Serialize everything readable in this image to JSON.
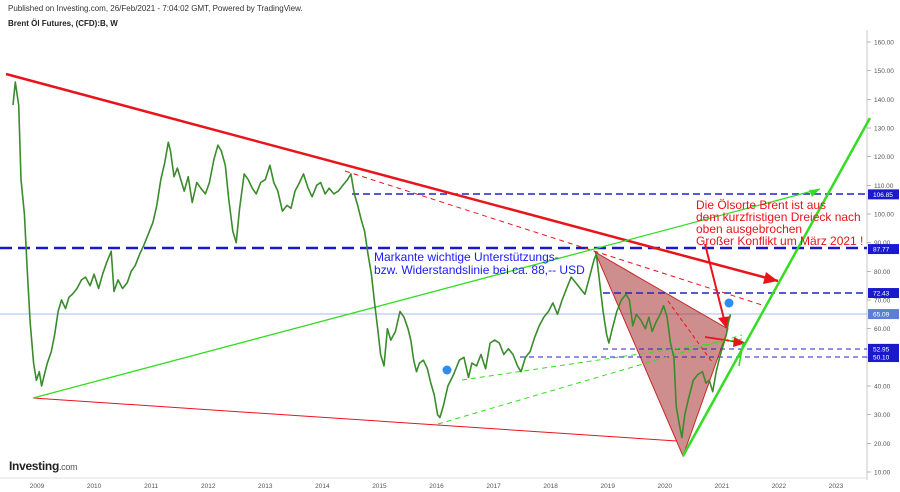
{
  "header": {
    "published": "Published on Investing.com, 26/Feb/2021 - 7:04:02 GMT, Powered by TradingView.",
    "title": "Brent Öl Futures, (CFD):B, W"
  },
  "logo": {
    "brand": "Investing",
    "suffix": ".com"
  },
  "annotations": {
    "red_note": "Die Ölsorte Brent ist aus\ndem kurzfristigen Dreieck nach\noben ausgebrochen\nGroßer Konflikt um März 2021 !",
    "blue_note": "Markante wichtige Unterstützungs-\nbzw. Widerstandslinie bei ca. 88,-- USD"
  },
  "chart_data": {
    "type": "line",
    "title": "Brent Öl Futures, (CFD):B, W",
    "xlabel": "",
    "ylabel": "",
    "x_ticks": [
      "2009",
      "2010",
      "2011",
      "2012",
      "2013",
      "2014",
      "2015",
      "2016",
      "2017",
      "2018",
      "2019",
      "2020",
      "2021",
      "2022",
      "2023"
    ],
    "y_ticks": [
      "10.00",
      "20.00",
      "30.00",
      "40.00",
      "50.00",
      "60.00",
      "70.00",
      "80.00",
      "90.00",
      "100.00",
      "110.00",
      "120.00",
      "130.00",
      "140.00",
      "150.00",
      "160.00"
    ],
    "ylim": [
      10,
      162
    ],
    "xlim": [
      2008.55,
      2023.6
    ],
    "grid": false,
    "price_labels": [
      {
        "value": 106.85,
        "text": "106.85",
        "color": "#1a1acc"
      },
      {
        "value": 87.77,
        "text": "87.77",
        "color": "#1a1acc"
      },
      {
        "value": 72.43,
        "text": "72.43",
        "color": "#1a1acc"
      },
      {
        "value": 65.09,
        "text": "65.09",
        "color": "#5b7fd6"
      },
      {
        "value": 52.95,
        "text": "52.95",
        "color": "#1a1acc"
      },
      {
        "value": 50.1,
        "text": "50.10",
        "color": "#1a1acc"
      }
    ],
    "series": [
      {
        "values": [
          [
            2008.58,
            138
          ],
          [
            2008.62,
            146
          ],
          [
            2008.68,
            138
          ],
          [
            2008.72,
            112
          ],
          [
            2008.78,
            100
          ],
          [
            2008.83,
            80
          ],
          [
            2008.88,
            62
          ],
          [
            2008.94,
            48
          ],
          [
            2008.99,
            42
          ],
          [
            2009.04,
            45
          ],
          [
            2009.08,
            40
          ],
          [
            2009.13,
            44
          ],
          [
            2009.18,
            48
          ],
          [
            2009.25,
            52
          ],
          [
            2009.31,
            58
          ],
          [
            2009.37,
            66
          ],
          [
            2009.43,
            70
          ],
          [
            2009.5,
            67
          ],
          [
            2009.56,
            71
          ],
          [
            2009.62,
            72
          ],
          [
            2009.7,
            74
          ],
          [
            2009.78,
            77
          ],
          [
            2009.85,
            78
          ],
          [
            2009.93,
            75
          ],
          [
            2010.0,
            79
          ],
          [
            2010.08,
            74
          ],
          [
            2010.15,
            79
          ],
          [
            2010.22,
            83
          ],
          [
            2010.3,
            87
          ],
          [
            2010.35,
            73
          ],
          [
            2010.42,
            77
          ],
          [
            2010.5,
            74
          ],
          [
            2010.58,
            76
          ],
          [
            2010.65,
            80
          ],
          [
            2010.72,
            82
          ],
          [
            2010.8,
            86
          ],
          [
            2010.87,
            89
          ],
          [
            2010.95,
            93
          ],
          [
            2011.03,
            97
          ],
          [
            2011.1,
            103
          ],
          [
            2011.17,
            112
          ],
          [
            2011.24,
            118
          ],
          [
            2011.3,
            125
          ],
          [
            2011.34,
            122
          ],
          [
            2011.4,
            113
          ],
          [
            2011.46,
            116
          ],
          [
            2011.52,
            112
          ],
          [
            2011.58,
            108
          ],
          [
            2011.65,
            113
          ],
          [
            2011.72,
            104
          ],
          [
            2011.8,
            111
          ],
          [
            2011.87,
            109
          ],
          [
            2011.95,
            107
          ],
          [
            2012.02,
            111
          ],
          [
            2012.1,
            119
          ],
          [
            2012.17,
            124
          ],
          [
            2012.23,
            122
          ],
          [
            2012.3,
            117
          ],
          [
            2012.36,
            105
          ],
          [
            2012.43,
            94
          ],
          [
            2012.49,
            90
          ],
          [
            2012.55,
            102
          ],
          [
            2012.63,
            114
          ],
          [
            2012.7,
            112
          ],
          [
            2012.77,
            109
          ],
          [
            2012.84,
            107
          ],
          [
            2012.92,
            111
          ],
          [
            2013.0,
            112
          ],
          [
            2013.08,
            117
          ],
          [
            2013.15,
            111
          ],
          [
            2013.22,
            108
          ],
          [
            2013.3,
            101
          ],
          [
            2013.38,
            103
          ],
          [
            2013.45,
            102
          ],
          [
            2013.52,
            108
          ],
          [
            2013.6,
            111
          ],
          [
            2013.67,
            114
          ],
          [
            2013.75,
            109
          ],
          [
            2013.82,
            106
          ],
          [
            2013.9,
            110
          ],
          [
            2013.97,
            111
          ],
          [
            2014.05,
            107
          ],
          [
            2014.12,
            109
          ],
          [
            2014.2,
            107
          ],
          [
            2014.28,
            108
          ],
          [
            2014.36,
            110
          ],
          [
            2014.44,
            112
          ],
          [
            2014.5,
            114
          ],
          [
            2014.56,
            107
          ],
          [
            2014.62,
            103
          ],
          [
            2014.68,
            98
          ],
          [
            2014.74,
            94
          ],
          [
            2014.8,
            86
          ],
          [
            2014.86,
            79
          ],
          [
            2014.92,
            68
          ],
          [
            2014.97,
            60
          ],
          [
            2015.02,
            51
          ],
          [
            2015.08,
            47
          ],
          [
            2015.14,
            60
          ],
          [
            2015.2,
            56
          ],
          [
            2015.28,
            59
          ],
          [
            2015.36,
            66
          ],
          [
            2015.43,
            64
          ],
          [
            2015.5,
            60
          ],
          [
            2015.55,
            56
          ],
          [
            2015.6,
            49
          ],
          [
            2015.65,
            45
          ],
          [
            2015.7,
            48
          ],
          [
            2015.77,
            49
          ],
          [
            2015.84,
            46
          ],
          [
            2015.9,
            41
          ],
          [
            2015.96,
            37
          ],
          [
            2016.02,
            30
          ],
          [
            2016.06,
            29
          ],
          [
            2016.12,
            33
          ],
          [
            2016.2,
            40
          ],
          [
            2016.3,
            44
          ],
          [
            2016.4,
            49
          ],
          [
            2016.48,
            50
          ],
          [
            2016.56,
            43
          ],
          [
            2016.62,
            48
          ],
          [
            2016.7,
            47
          ],
          [
            2016.78,
            51
          ],
          [
            2016.86,
            46
          ],
          [
            2016.94,
            55
          ],
          [
            2017.02,
            56
          ],
          [
            2017.1,
            55
          ],
          [
            2017.18,
            51
          ],
          [
            2017.26,
            53
          ],
          [
            2017.34,
            51
          ],
          [
            2017.42,
            47
          ],
          [
            2017.48,
            45
          ],
          [
            2017.56,
            50
          ],
          [
            2017.64,
            52
          ],
          [
            2017.72,
            57
          ],
          [
            2017.8,
            61
          ],
          [
            2017.88,
            64
          ],
          [
            2017.96,
            66
          ],
          [
            2018.04,
            69
          ],
          [
            2018.12,
            65
          ],
          [
            2018.2,
            70
          ],
          [
            2018.28,
            74
          ],
          [
            2018.36,
            78
          ],
          [
            2018.44,
            76
          ],
          [
            2018.52,
            74
          ],
          [
            2018.6,
            72
          ],
          [
            2018.68,
            78
          ],
          [
            2018.76,
            84
          ],
          [
            2018.8,
            86
          ],
          [
            2018.86,
            76
          ],
          [
            2018.92,
            66
          ],
          [
            2018.98,
            58
          ],
          [
            2019.02,
            55
          ],
          [
            2019.08,
            60
          ],
          [
            2019.16,
            66
          ],
          [
            2019.24,
            70
          ],
          [
            2019.32,
            72
          ],
          [
            2019.38,
            70
          ],
          [
            2019.44,
            61
          ],
          [
            2019.5,
            65
          ],
          [
            2019.58,
            63
          ],
          [
            2019.66,
            60
          ],
          [
            2019.72,
            64
          ],
          [
            2019.78,
            59
          ],
          [
            2019.84,
            62
          ],
          [
            2019.92,
            65
          ],
          [
            2019.98,
            68
          ],
          [
            2020.04,
            64
          ],
          [
            2020.1,
            55
          ],
          [
            2020.16,
            50
          ],
          [
            2020.2,
            33
          ],
          [
            2020.25,
            27
          ],
          [
            2020.3,
            22
          ],
          [
            2020.35,
            30
          ],
          [
            2020.42,
            36
          ],
          [
            2020.5,
            42
          ],
          [
            2020.58,
            44
          ],
          [
            2020.66,
            45
          ],
          [
            2020.72,
            41
          ],
          [
            2020.78,
            42
          ],
          [
            2020.84,
            38
          ],
          [
            2020.9,
            45
          ],
          [
            2020.96,
            50
          ],
          [
            2021.02,
            54
          ],
          [
            2021.08,
            58
          ],
          [
            2021.12,
            63
          ],
          [
            2021.15,
            65
          ]
        ]
      }
    ]
  }
}
